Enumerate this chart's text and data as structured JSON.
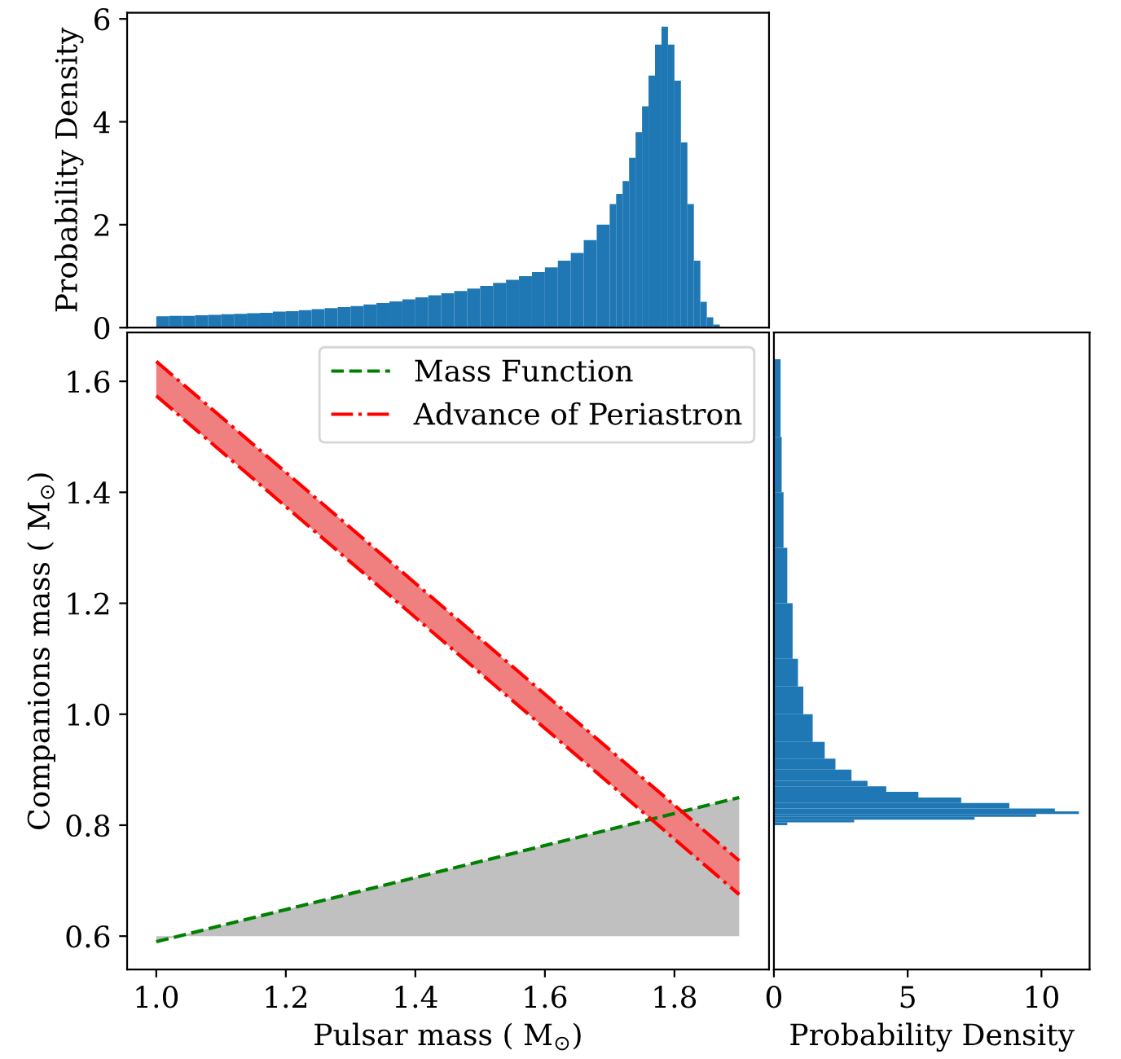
{
  "chart_data": [
    {
      "type": "histogram",
      "ylabel": "Probability Density",
      "color": "#1f77b4",
      "bins": [
        1.0,
        1.02,
        1.04,
        1.06,
        1.08,
        1.1,
        1.12,
        1.14,
        1.16,
        1.18,
        1.2,
        1.22,
        1.24,
        1.26,
        1.28,
        1.3,
        1.32,
        1.34,
        1.36,
        1.38,
        1.4,
        1.42,
        1.44,
        1.46,
        1.48,
        1.5,
        1.52,
        1.54,
        1.56,
        1.58,
        1.6,
        1.62,
        1.64,
        1.66,
        1.68,
        1.7,
        1.71,
        1.72,
        1.73,
        1.74,
        1.75,
        1.76,
        1.77,
        1.78,
        1.79,
        1.8,
        1.81,
        1.82,
        1.83,
        1.84,
        1.85,
        1.86,
        1.87,
        1.88
      ],
      "values": [
        0.22,
        0.23,
        0.23,
        0.24,
        0.25,
        0.26,
        0.27,
        0.28,
        0.29,
        0.31,
        0.32,
        0.34,
        0.36,
        0.38,
        0.4,
        0.42,
        0.45,
        0.48,
        0.51,
        0.55,
        0.59,
        0.63,
        0.67,
        0.71,
        0.76,
        0.81,
        0.87,
        0.93,
        1.0,
        1.08,
        1.17,
        1.3,
        1.45,
        1.7,
        2.0,
        2.4,
        2.6,
        2.85,
        3.3,
        3.8,
        4.3,
        4.9,
        5.5,
        5.85,
        5.5,
        4.8,
        3.6,
        2.4,
        1.3,
        0.5,
        0.2,
        0.06,
        0.02
      ],
      "xlim": [
        0.955,
        1.946
      ],
      "ylim": [
        0,
        6.12
      ],
      "yticks": [
        0,
        2,
        4,
        6
      ],
      "tick_labels": "y"
    },
    {
      "type": "line",
      "xlabel": "Pulsar mass ( M$_{⊙}$)",
      "ylabel": "Companions mass ( M$_{⊙}$)",
      "x": [
        1.0,
        1.9
      ],
      "series": [
        {
          "type": "line",
          "name": "Mass Function",
          "color": "#008000",
          "colors": [
            "#008000",
            "#c0c0c0"
          ],
          "line_style": "dashed",
          "values": [
            0.59,
            0.85
          ],
          "lower": [
            0.6,
            0.6
          ],
          "upper": [
            0.59,
            0.85
          ]
        },
        {
          "type": "line",
          "name": "Advance of Periastron",
          "color": "#ff0000",
          "colors": [
            "#ff0000",
            "#f08080"
          ],
          "line_style": "dashdot",
          "values": [
            1.636,
            0.736
          ],
          "lower": [
            1.574,
            0.675
          ],
          "upper": [
            1.636,
            0.736
          ]
        },
        {
          "type": "line",
          "color": "#ff0000",
          "line_style": "dashdot",
          "values": [
            1.574,
            0.675
          ]
        }
      ],
      "xlim": [
        0.955,
        1.946
      ],
      "ylim": [
        0.54,
        1.688
      ],
      "xticks": [
        {
          "value": 1,
          "label": "1.0"
        },
        1.2,
        1.4,
        1.6,
        1.8
      ],
      "yticks": [
        0.6,
        0.8,
        {
          "value": 1,
          "label": "1.0"
        },
        1.2,
        1.4,
        1.6
      ],
      "legend": "top right"
    },
    {
      "type": "histogram",
      "orientation": "horizontal",
      "xlabel": "Probability Density",
      "color": "#1f77b4",
      "bins": [
        0.8,
        0.805,
        0.81,
        0.815,
        0.82,
        0.825,
        0.83,
        0.84,
        0.85,
        0.86,
        0.87,
        0.88,
        0.9,
        0.92,
        0.95,
        1.0,
        1.05,
        1.1,
        1.2,
        1.3,
        1.4,
        1.5,
        1.64
      ],
      "values": [
        0.5,
        3.0,
        7.5,
        9.8,
        11.4,
        10.5,
        8.8,
        7.0,
        5.4,
        4.2,
        3.5,
        2.9,
        2.3,
        1.9,
        1.45,
        1.1,
        0.9,
        0.7,
        0.5,
        0.36,
        0.29,
        0.25
      ],
      "xlim": [
        0,
        11.8
      ],
      "ylim": [
        0.54,
        1.688
      ],
      "xticks": [
        0,
        5,
        10
      ],
      "tick_labels": "x"
    }
  ]
}
